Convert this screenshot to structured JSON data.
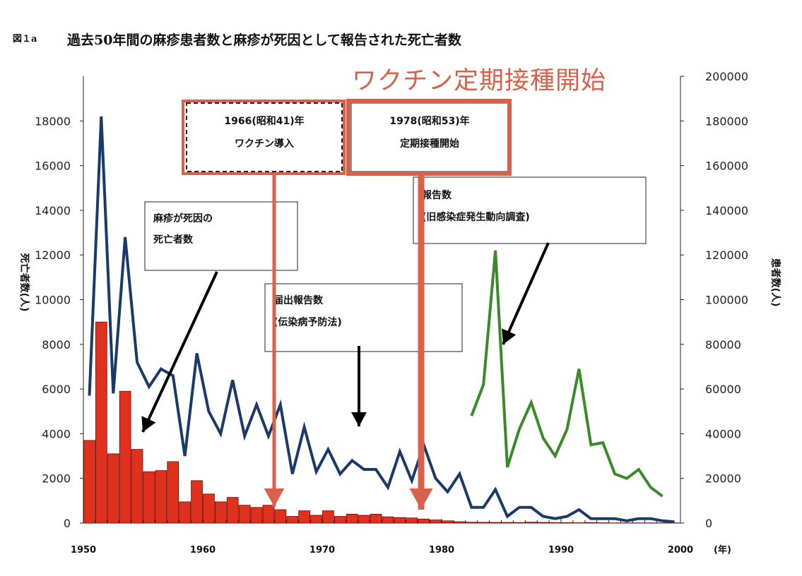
{
  "figure_label": "図１a",
  "title": "過去50年間の麻疹患者数と麻疹が死因として報告された死亡者数",
  "overlay_title": "ワクチン定期接種開始",
  "colors": {
    "deaths_bar": "#e0301e",
    "notified_line": "#1a3a6b",
    "surveillance_line": "#3a8a2a",
    "highlight": "#d9604a"
  },
  "chart_data": {
    "type": "bar+line",
    "title": "過去50年間の麻疹患者数と麻疹が死因として報告された死亡者数",
    "xlabel": "(年)",
    "ylabel_left": "死亡者数(人)",
    "ylabel_right": "患者数(人)",
    "xlim": [
      1950,
      2000
    ],
    "ylim_left": [
      0,
      20000
    ],
    "ylim_right": [
      0,
      200000
    ],
    "x_ticks": [
      1950,
      1960,
      1970,
      1980,
      1990,
      2000
    ],
    "y_ticks_left": [
      0,
      2000,
      4000,
      6000,
      8000,
      10000,
      12000,
      14000,
      16000,
      18000
    ],
    "y_ticks_right": [
      0,
      20000,
      40000,
      60000,
      80000,
      100000,
      120000,
      140000,
      160000,
      180000,
      200000
    ],
    "series": [
      {
        "name": "麻疹が死因の死亡者数",
        "kind": "bar",
        "axis": "left",
        "x": [
          1950,
          1951,
          1952,
          1953,
          1954,
          1955,
          1956,
          1957,
          1958,
          1959,
          1960,
          1961,
          1962,
          1963,
          1964,
          1965,
          1966,
          1967,
          1968,
          1969,
          1970,
          1971,
          1972,
          1973,
          1974,
          1975,
          1976,
          1977,
          1978,
          1979,
          1980,
          1981,
          1982,
          1983,
          1984,
          1985,
          1986,
          1987,
          1988,
          1989,
          1990,
          1991,
          1992,
          1993,
          1994,
          1995,
          1996,
          1997,
          1998,
          1999
        ],
        "values": [
          3700,
          9000,
          3100,
          5900,
          3300,
          2300,
          2350,
          2750,
          950,
          1900,
          1300,
          950,
          1150,
          800,
          700,
          800,
          600,
          300,
          550,
          350,
          550,
          300,
          400,
          350,
          400,
          280,
          250,
          230,
          180,
          140,
          100,
          60,
          40,
          35,
          30,
          30,
          25,
          40,
          30,
          20,
          20,
          15,
          25,
          15,
          10,
          10,
          10,
          10,
          10,
          10
        ]
      },
      {
        "name": "届出報告数(伝染病予防法)",
        "kind": "line",
        "axis": "right",
        "x": [
          1950,
          1951,
          1952,
          1953,
          1954,
          1955,
          1956,
          1957,
          1958,
          1959,
          1960,
          1961,
          1962,
          1963,
          1964,
          1965,
          1966,
          1967,
          1968,
          1969,
          1970,
          1971,
          1972,
          1973,
          1974,
          1975,
          1976,
          1977,
          1978,
          1979,
          1980,
          1981,
          1982,
          1983,
          1984,
          1985,
          1986,
          1987,
          1988,
          1989,
          1990,
          1991,
          1992,
          1993,
          1994,
          1995,
          1996,
          1997,
          1998,
          1999
        ],
        "values": [
          57000,
          182000,
          58000,
          128000,
          72000,
          61000,
          69000,
          66000,
          30000,
          76000,
          50000,
          40000,
          64000,
          39000,
          53000,
          39000,
          53000,
          22000,
          43000,
          23000,
          33000,
          22000,
          28000,
          24000,
          24000,
          16000,
          32000,
          19000,
          35000,
          20000,
          14000,
          22000,
          7000,
          7000,
          15000,
          3000,
          7000,
          7000,
          3000,
          2000,
          3000,
          6000,
          2000,
          2000,
          2000,
          1000,
          2000,
          2000,
          1000,
          500
        ]
      },
      {
        "name": "報告数(旧感染症発生動向調査)",
        "kind": "line",
        "axis": "right",
        "x": [
          1982,
          1983,
          1984,
          1985,
          1986,
          1987,
          1988,
          1989,
          1990,
          1991,
          1992,
          1993,
          1994,
          1995,
          1996,
          1997,
          1998
        ],
        "values": [
          48000,
          62000,
          122000,
          25000,
          42000,
          54000,
          38000,
          30000,
          42000,
          69000,
          35000,
          36000,
          22000,
          20000,
          24000,
          16000,
          12000
        ]
      }
    ],
    "annotations": [
      {
        "text": [
          "麻疹が死因の",
          "死亡者数"
        ]
      },
      {
        "text": [
          "届出報告数",
          "(伝染病予防法)"
        ]
      },
      {
        "text": [
          "報告数",
          "(旧感染症発生動向調査)"
        ]
      },
      {
        "text": [
          "1966(昭和41)年",
          "ワクチン導入"
        ],
        "x": 1966
      },
      {
        "text": [
          "1978(昭和53)年",
          "定期接種開始"
        ],
        "x": 1978
      }
    ],
    "grid": false,
    "legend": "none"
  }
}
